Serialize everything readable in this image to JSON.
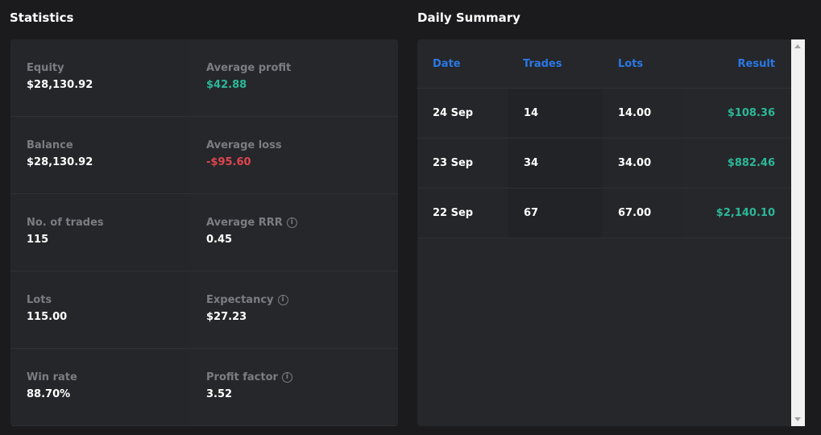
{
  "statistics": {
    "title": "Statistics",
    "cells": [
      {
        "label": "Equity",
        "value": "$28,130.92",
        "info": false,
        "tone": "neutral"
      },
      {
        "label": "Average profit",
        "value": "$42.88",
        "info": false,
        "tone": "positive"
      },
      {
        "label": "Balance",
        "value": "$28,130.92",
        "info": false,
        "tone": "neutral"
      },
      {
        "label": "Average loss",
        "value": "-$95.60",
        "info": false,
        "tone": "negative"
      },
      {
        "label": "No. of trades",
        "value": "115",
        "info": false,
        "tone": "neutral"
      },
      {
        "label": "Average RRR",
        "value": "0.45",
        "info": true,
        "tone": "neutral"
      },
      {
        "label": "Lots",
        "value": "115.00",
        "info": false,
        "tone": "neutral"
      },
      {
        "label": "Expectancy",
        "value": "$27.23",
        "info": true,
        "tone": "neutral"
      },
      {
        "label": "Win rate",
        "value": "88.70%",
        "info": false,
        "tone": "neutral"
      },
      {
        "label": "Profit factor",
        "value": "3.52",
        "info": true,
        "tone": "neutral"
      }
    ]
  },
  "daily_summary": {
    "title": "Daily Summary",
    "columns": [
      "Date",
      "Trades",
      "Lots",
      "Result"
    ],
    "rows": [
      [
        "24 Sep",
        "14",
        "14.00",
        "$108.36"
      ],
      [
        "23 Sep",
        "34",
        "34.00",
        "$882.46"
      ],
      [
        "22 Sep",
        "67",
        "67.00",
        "$2,140.10"
      ]
    ]
  },
  "icons": {
    "info": "info-circle-icon",
    "info_glyph": "i"
  },
  "colors": {
    "background": "#1b1b1d",
    "panel": "#26272a",
    "header_accent": "#2a78e4",
    "positive": "#2bb89a",
    "negative": "#e0454f",
    "label": "#7b7d82"
  }
}
